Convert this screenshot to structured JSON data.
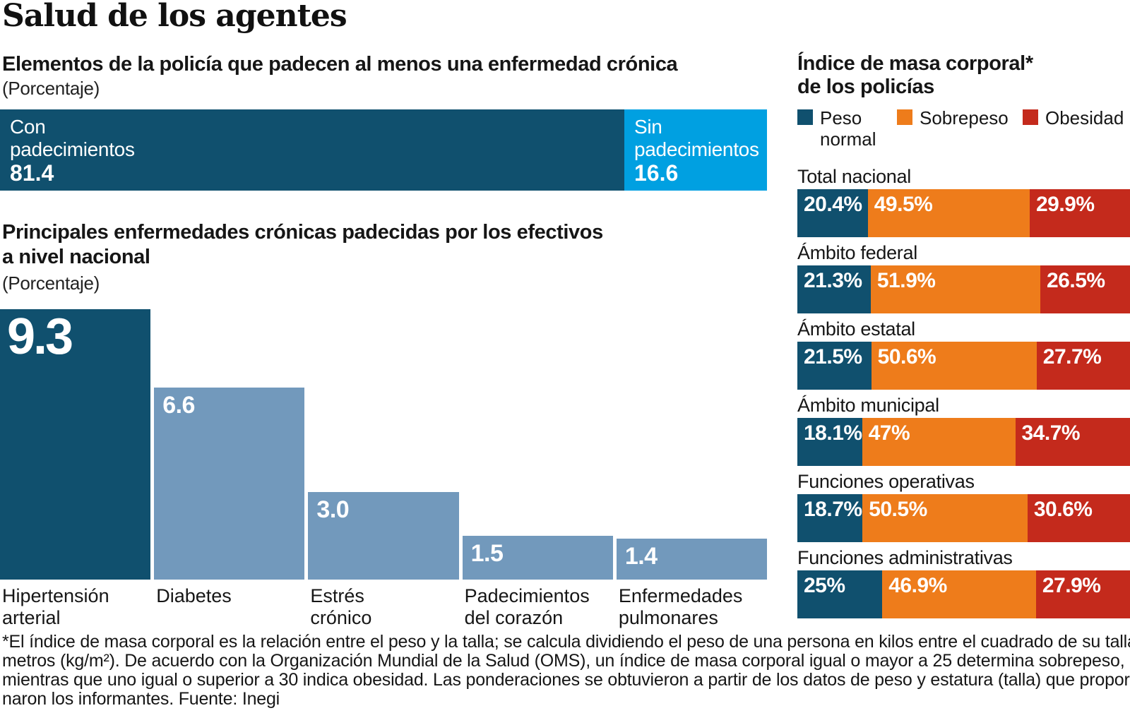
{
  "page_title": "Salud de los agentes",
  "colors": {
    "navy": "#10506e",
    "light_blue": "#00a0e1",
    "steel_blue": "#7299bc",
    "orange": "#ee7c1b",
    "red": "#c42a1c",
    "text": "#161616"
  },
  "chart_data": [
    {
      "type": "bar",
      "variant": "horizontal-stacked",
      "title": "Elementos de la policía que padecen al menos una enfermedad crónica",
      "unit": "(Porcentaje)",
      "xlim": [
        0,
        100
      ],
      "segments": [
        {
          "label_lines": [
            "Con",
            "padecimientos"
          ],
          "value": 81.4,
          "value_label": "81.4",
          "color": "#10506e"
        },
        {
          "label_lines": [
            "Sin",
            "padecimientos"
          ],
          "value": 16.6,
          "value_label": "16.6",
          "color": "#00a0e1"
        }
      ]
    },
    {
      "type": "bar",
      "variant": "vertical",
      "title_lines": [
        "Principales enfermedades crónicas padecidas por los efectivos",
        "a nivel nacional"
      ],
      "unit": "(Porcentaje)",
      "ylim": [
        0,
        9.3
      ],
      "bars": [
        {
          "category_lines": [
            "Hipertensión",
            "arterial"
          ],
          "value": 9.3,
          "value_label": "9.3",
          "color": "#10506e"
        },
        {
          "category_lines": [
            "Diabetes"
          ],
          "value": 6.6,
          "value_label": "6.6",
          "color": "#7299bc"
        },
        {
          "category_lines": [
            "Estrés",
            "crónico"
          ],
          "value": 3.0,
          "value_label": "3.0",
          "color": "#7299bc"
        },
        {
          "category_lines": [
            "Padecimientos",
            "del corazón"
          ],
          "value": 1.5,
          "value_label": "1.5",
          "color": "#7299bc"
        },
        {
          "category_lines": [
            "Enfermedades",
            "pulmonares"
          ],
          "value": 1.4,
          "value_label": "1.4",
          "color": "#7299bc"
        }
      ]
    },
    {
      "type": "bar",
      "variant": "horizontal-stacked-multi",
      "title_lines": [
        "Índice de masa corporal*",
        "de los policías"
      ],
      "legend": [
        {
          "label_lines": [
            "Peso",
            "normal"
          ],
          "color": "#10506e"
        },
        {
          "label_lines": [
            "Sobrepeso"
          ],
          "color": "#ee7c1b"
        },
        {
          "label_lines": [
            "Obesidad"
          ],
          "color": "#c42a1c"
        }
      ],
      "series_names": [
        "Peso normal",
        "Sobrepeso",
        "Obesidad"
      ],
      "rows": [
        {
          "category": "Total nacional",
          "segments": [
            {
              "value": 20.4,
              "label": "20.4%"
            },
            {
              "value": 49.5,
              "label": "49.5%"
            },
            {
              "value": 29.9,
              "label": "29.9%"
            }
          ]
        },
        {
          "category": "Ámbito federal",
          "segments": [
            {
              "value": 21.3,
              "label": "21.3%"
            },
            {
              "value": 51.9,
              "label": "51.9%"
            },
            {
              "value": 26.5,
              "label": "26.5%"
            }
          ]
        },
        {
          "category": "Ámbito estatal",
          "segments": [
            {
              "value": 21.5,
              "label": "21.5%"
            },
            {
              "value": 50.6,
              "label": "50.6%"
            },
            {
              "value": 27.7,
              "label": "27.7%"
            }
          ]
        },
        {
          "category": "Ámbito municipal",
          "segments": [
            {
              "value": 18.1,
              "label": "18.1%"
            },
            {
              "value": 47,
              "label": "47%"
            },
            {
              "value": 34.7,
              "label": "34.7%"
            }
          ]
        },
        {
          "category": "Funciones operativas",
          "segments": [
            {
              "value": 18.7,
              "label": "18.7%"
            },
            {
              "value": 50.5,
              "label": "50.5%"
            },
            {
              "value": 30.6,
              "label": "30.6%"
            }
          ]
        },
        {
          "category": "Funciones administrativas",
          "segments": [
            {
              "value": 25,
              "label": "25%"
            },
            {
              "value": 46.9,
              "label": "46.9%"
            },
            {
              "value": 27.9,
              "label": "27.9%"
            }
          ]
        }
      ]
    }
  ],
  "footnote_lines": [
    "*El índice de masa corporal es la relación entre el peso y la talla; se calcula dividiendo el peso de una persona en kilos entre el cuadrado de su talla en",
    "metros (kg/m²). De acuerdo con la Organización Mundial de la Salud (OMS), un índice de masa corporal igual o mayor a 25 determina sobrepeso,",
    "mientras que uno igual o superior a 30 indica obesidad. Las ponderaciones se obtuvieron a partir de los datos de peso y estatura (talla) que proporcio-",
    "naron los informantes. Fuente: Inegi"
  ]
}
